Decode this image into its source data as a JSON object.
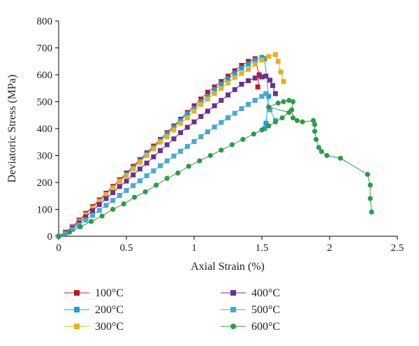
{
  "chart_data": {
    "type": "line",
    "title": "",
    "xlabel": "Axial Strain (%)",
    "ylabel": "Deviatoric Stress (MPa)",
    "xlim": [
      0,
      2.5
    ],
    "ylim": [
      0,
      800
    ],
    "x_ticks": [
      0,
      0.5,
      1,
      1.5,
      2,
      2.5
    ],
    "x_tick_labels": [
      "0",
      "0.5",
      "1",
      "1.5",
      "2",
      "2.5"
    ],
    "y_ticks": [
      0,
      100,
      200,
      300,
      400,
      500,
      600,
      700,
      800
    ],
    "y_tick_labels": [
      "0",
      "100",
      "200",
      "300",
      "400",
      "500",
      "600",
      "700",
      "800"
    ],
    "grid": false,
    "legend_position": "bottom",
    "series": [
      {
        "name": "100°C",
        "color": "#c0181c",
        "marker": "square",
        "points": [
          [
            0,
            0
          ],
          [
            0.05,
            15
          ],
          [
            0.1,
            35
          ],
          [
            0.15,
            60
          ],
          [
            0.2,
            85
          ],
          [
            0.25,
            110
          ],
          [
            0.3,
            135
          ],
          [
            0.35,
            160
          ],
          [
            0.4,
            185
          ],
          [
            0.45,
            210
          ],
          [
            0.5,
            235
          ],
          [
            0.55,
            260
          ],
          [
            0.6,
            285
          ],
          [
            0.65,
            310
          ],
          [
            0.7,
            335
          ],
          [
            0.75,
            360
          ],
          [
            0.8,
            385
          ],
          [
            0.85,
            410
          ],
          [
            0.9,
            435
          ],
          [
            0.95,
            460
          ],
          [
            1.0,
            485
          ],
          [
            1.05,
            510
          ],
          [
            1.1,
            535
          ],
          [
            1.15,
            555
          ],
          [
            1.2,
            575
          ],
          [
            1.25,
            595
          ],
          [
            1.3,
            615
          ],
          [
            1.35,
            635
          ],
          [
            1.4,
            650
          ],
          [
            1.45,
            660
          ],
          [
            1.48,
            600
          ],
          [
            1.47,
            555
          ]
        ]
      },
      {
        "name": "200°C",
        "color": "#1a9ee0",
        "marker": "square",
        "points": [
          [
            0,
            0
          ],
          [
            0.05,
            12
          ],
          [
            0.1,
            30
          ],
          [
            0.15,
            55
          ],
          [
            0.2,
            80
          ],
          [
            0.25,
            105
          ],
          [
            0.3,
            130
          ],
          [
            0.35,
            155
          ],
          [
            0.4,
            180
          ],
          [
            0.45,
            205
          ],
          [
            0.5,
            230
          ],
          [
            0.55,
            255
          ],
          [
            0.6,
            280
          ],
          [
            0.65,
            305
          ],
          [
            0.7,
            330
          ],
          [
            0.75,
            355
          ],
          [
            0.8,
            380
          ],
          [
            0.85,
            405
          ],
          [
            0.9,
            430
          ],
          [
            0.95,
            455
          ],
          [
            1.0,
            475
          ],
          [
            1.05,
            500
          ],
          [
            1.1,
            520
          ],
          [
            1.15,
            545
          ],
          [
            1.2,
            565
          ],
          [
            1.25,
            585
          ],
          [
            1.3,
            605
          ],
          [
            1.35,
            625
          ],
          [
            1.4,
            640
          ],
          [
            1.45,
            655
          ],
          [
            1.5,
            665
          ],
          [
            1.52,
            660
          ],
          [
            1.55,
            520
          ],
          [
            1.53,
            420
          ],
          [
            1.52,
            400
          ]
        ]
      },
      {
        "name": "300°C",
        "color": "#e7b11c",
        "marker": "square",
        "points": [
          [
            0,
            0
          ],
          [
            0.05,
            12
          ],
          [
            0.1,
            32
          ],
          [
            0.15,
            55
          ],
          [
            0.2,
            80
          ],
          [
            0.25,
            105
          ],
          [
            0.3,
            130
          ],
          [
            0.35,
            155
          ],
          [
            0.4,
            180
          ],
          [
            0.45,
            205
          ],
          [
            0.5,
            225
          ],
          [
            0.55,
            250
          ],
          [
            0.6,
            275
          ],
          [
            0.65,
            300
          ],
          [
            0.7,
            325
          ],
          [
            0.75,
            350
          ],
          [
            0.8,
            370
          ],
          [
            0.85,
            395
          ],
          [
            0.9,
            420
          ],
          [
            0.95,
            440
          ],
          [
            1.0,
            465
          ],
          [
            1.05,
            490
          ],
          [
            1.1,
            510
          ],
          [
            1.15,
            530
          ],
          [
            1.2,
            550
          ],
          [
            1.25,
            570
          ],
          [
            1.3,
            590
          ],
          [
            1.35,
            605
          ],
          [
            1.4,
            620
          ],
          [
            1.45,
            640
          ],
          [
            1.5,
            655
          ],
          [
            1.55,
            668
          ],
          [
            1.6,
            675
          ],
          [
            1.62,
            650
          ],
          [
            1.64,
            610
          ],
          [
            1.66,
            575
          ]
        ]
      },
      {
        "name": "400°C",
        "color": "#6b2f91",
        "marker": "square",
        "points": [
          [
            0,
            0
          ],
          [
            0.05,
            12
          ],
          [
            0.1,
            30
          ],
          [
            0.15,
            50
          ],
          [
            0.2,
            72
          ],
          [
            0.25,
            95
          ],
          [
            0.3,
            118
          ],
          [
            0.35,
            140
          ],
          [
            0.4,
            162
          ],
          [
            0.45,
            185
          ],
          [
            0.5,
            205
          ],
          [
            0.55,
            228
          ],
          [
            0.6,
            250
          ],
          [
            0.65,
            272
          ],
          [
            0.7,
            295
          ],
          [
            0.75,
            318
          ],
          [
            0.8,
            340
          ],
          [
            0.85,
            362
          ],
          [
            0.9,
            385
          ],
          [
            0.95,
            405
          ],
          [
            1.0,
            425
          ],
          [
            1.05,
            445
          ],
          [
            1.1,
            465
          ],
          [
            1.15,
            485
          ],
          [
            1.2,
            505
          ],
          [
            1.25,
            525
          ],
          [
            1.3,
            545
          ],
          [
            1.35,
            565
          ],
          [
            1.4,
            578
          ],
          [
            1.45,
            588
          ],
          [
            1.5,
            592
          ],
          [
            1.53,
            595
          ],
          [
            1.56,
            580
          ],
          [
            1.58,
            560
          ],
          [
            1.6,
            530
          ]
        ]
      },
      {
        "name": "500°C",
        "color": "#4aa9cf",
        "marker": "square",
        "points": [
          [
            0,
            0
          ],
          [
            0.05,
            10
          ],
          [
            0.1,
            25
          ],
          [
            0.15,
            42
          ],
          [
            0.2,
            60
          ],
          [
            0.25,
            78
          ],
          [
            0.3,
            96
          ],
          [
            0.35,
            115
          ],
          [
            0.4,
            133
          ],
          [
            0.45,
            152
          ],
          [
            0.5,
            170
          ],
          [
            0.55,
            188
          ],
          [
            0.6,
            206
          ],
          [
            0.65,
            225
          ],
          [
            0.7,
            243
          ],
          [
            0.75,
            262
          ],
          [
            0.8,
            280
          ],
          [
            0.85,
            298
          ],
          [
            0.9,
            316
          ],
          [
            0.95,
            334
          ],
          [
            1.0,
            352
          ],
          [
            1.05,
            370
          ],
          [
            1.1,
            388
          ],
          [
            1.15,
            406
          ],
          [
            1.2,
            423
          ],
          [
            1.25,
            440
          ],
          [
            1.3,
            457
          ],
          [
            1.35,
            474
          ],
          [
            1.4,
            490
          ],
          [
            1.45,
            505
          ],
          [
            1.5,
            520
          ],
          [
            1.53,
            530
          ],
          [
            1.56,
            470
          ],
          [
            1.6,
            430
          ]
        ]
      },
      {
        "name": "600°C",
        "color": "#2f9a47",
        "marker": "circle",
        "points": [
          [
            0,
            0
          ],
          [
            0.08,
            15
          ],
          [
            0.16,
            35
          ],
          [
            0.24,
            55
          ],
          [
            0.32,
            75
          ],
          [
            0.4,
            100
          ],
          [
            0.48,
            120
          ],
          [
            0.56,
            145
          ],
          [
            0.64,
            165
          ],
          [
            0.72,
            190
          ],
          [
            0.8,
            215
          ],
          [
            0.88,
            235
          ],
          [
            0.96,
            260
          ],
          [
            1.04,
            280
          ],
          [
            1.12,
            300
          ],
          [
            1.2,
            320
          ],
          [
            1.28,
            340
          ],
          [
            1.36,
            360
          ],
          [
            1.44,
            380
          ],
          [
            1.5,
            395
          ],
          [
            1.55,
            410
          ],
          [
            1.6,
            425
          ],
          [
            1.65,
            440
          ],
          [
            1.7,
            460
          ],
          [
            1.55,
            480
          ],
          [
            1.62,
            495
          ],
          [
            1.66,
            500
          ],
          [
            1.7,
            505
          ],
          [
            1.73,
            500
          ],
          [
            1.72,
            470
          ],
          [
            1.73,
            440
          ],
          [
            1.76,
            430
          ],
          [
            1.8,
            425
          ],
          [
            1.88,
            430
          ],
          [
            1.89,
            415
          ],
          [
            1.89,
            390
          ],
          [
            1.9,
            360
          ],
          [
            1.92,
            330
          ],
          [
            1.94,
            315
          ],
          [
            1.98,
            300
          ],
          [
            2.08,
            290
          ],
          [
            2.28,
            230
          ],
          [
            2.3,
            190
          ],
          [
            2.3,
            140
          ],
          [
            2.31,
            90
          ]
        ]
      }
    ]
  }
}
